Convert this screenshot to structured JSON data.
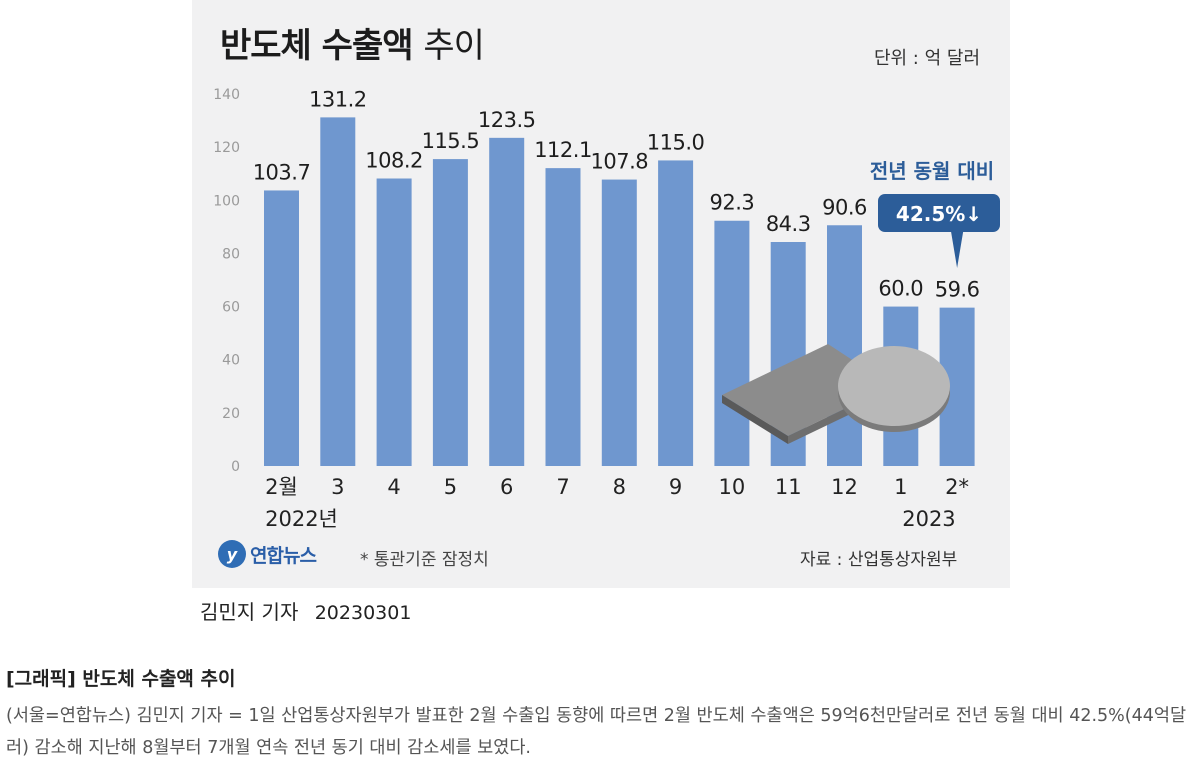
{
  "header": {
    "title_main": "반도체 수출액",
    "title_light": "추이",
    "unit": "단위 : 억 달러"
  },
  "chart_data": {
    "type": "bar",
    "title": "반도체 수출액 추이",
    "ylim": [
      0,
      140
    ],
    "yticks": [
      0,
      20,
      40,
      60,
      80,
      100,
      120,
      140
    ],
    "categories": [
      "2월",
      "3",
      "4",
      "5",
      "6",
      "7",
      "8",
      "9",
      "10",
      "11",
      "12",
      "1",
      "2*"
    ],
    "values": [
      103.7,
      131.2,
      108.2,
      115.5,
      123.5,
      112.1,
      107.8,
      115.0,
      92.3,
      84.3,
      90.6,
      60.0,
      59.6
    ],
    "value_labels": [
      "103.7",
      "131.2",
      "108.2",
      "115.5",
      "123.5",
      "112.1",
      "107.8",
      "115.0",
      "92.3",
      "84.3",
      "90.6",
      "60.0",
      "59.6"
    ],
    "year_labels": [
      {
        "label": "2022년",
        "index": 0
      },
      {
        "label": "2023",
        "index": 11
      }
    ],
    "annotation": {
      "label": "전년 동월 대비",
      "badge": "42.5%↓"
    },
    "bar_color": "#6f97cf",
    "badge_color": "#2c5d99",
    "grid": false
  },
  "footer": {
    "logo": "연합뉴스",
    "footnote": "* 통관기준 잠정치",
    "source": "자료 : 산업통상자원부"
  },
  "reporter": {
    "name": "김민지 기자",
    "date": "20230301"
  },
  "caption": {
    "title": "[그래픽] 반도체 수출액 추이",
    "body": "(서울=연합뉴스) 김민지 기자 = 1일 산업통상자원부가 발표한 2월 수출입 동향에 따르면 2월 반도체 수출액은 59억6천만달러로 전년 동월 대비 42.5%(44억달러) 감소해 지난해 8월부터 7개월 연속 전년 동기 대비 감소세를 보였다."
  }
}
